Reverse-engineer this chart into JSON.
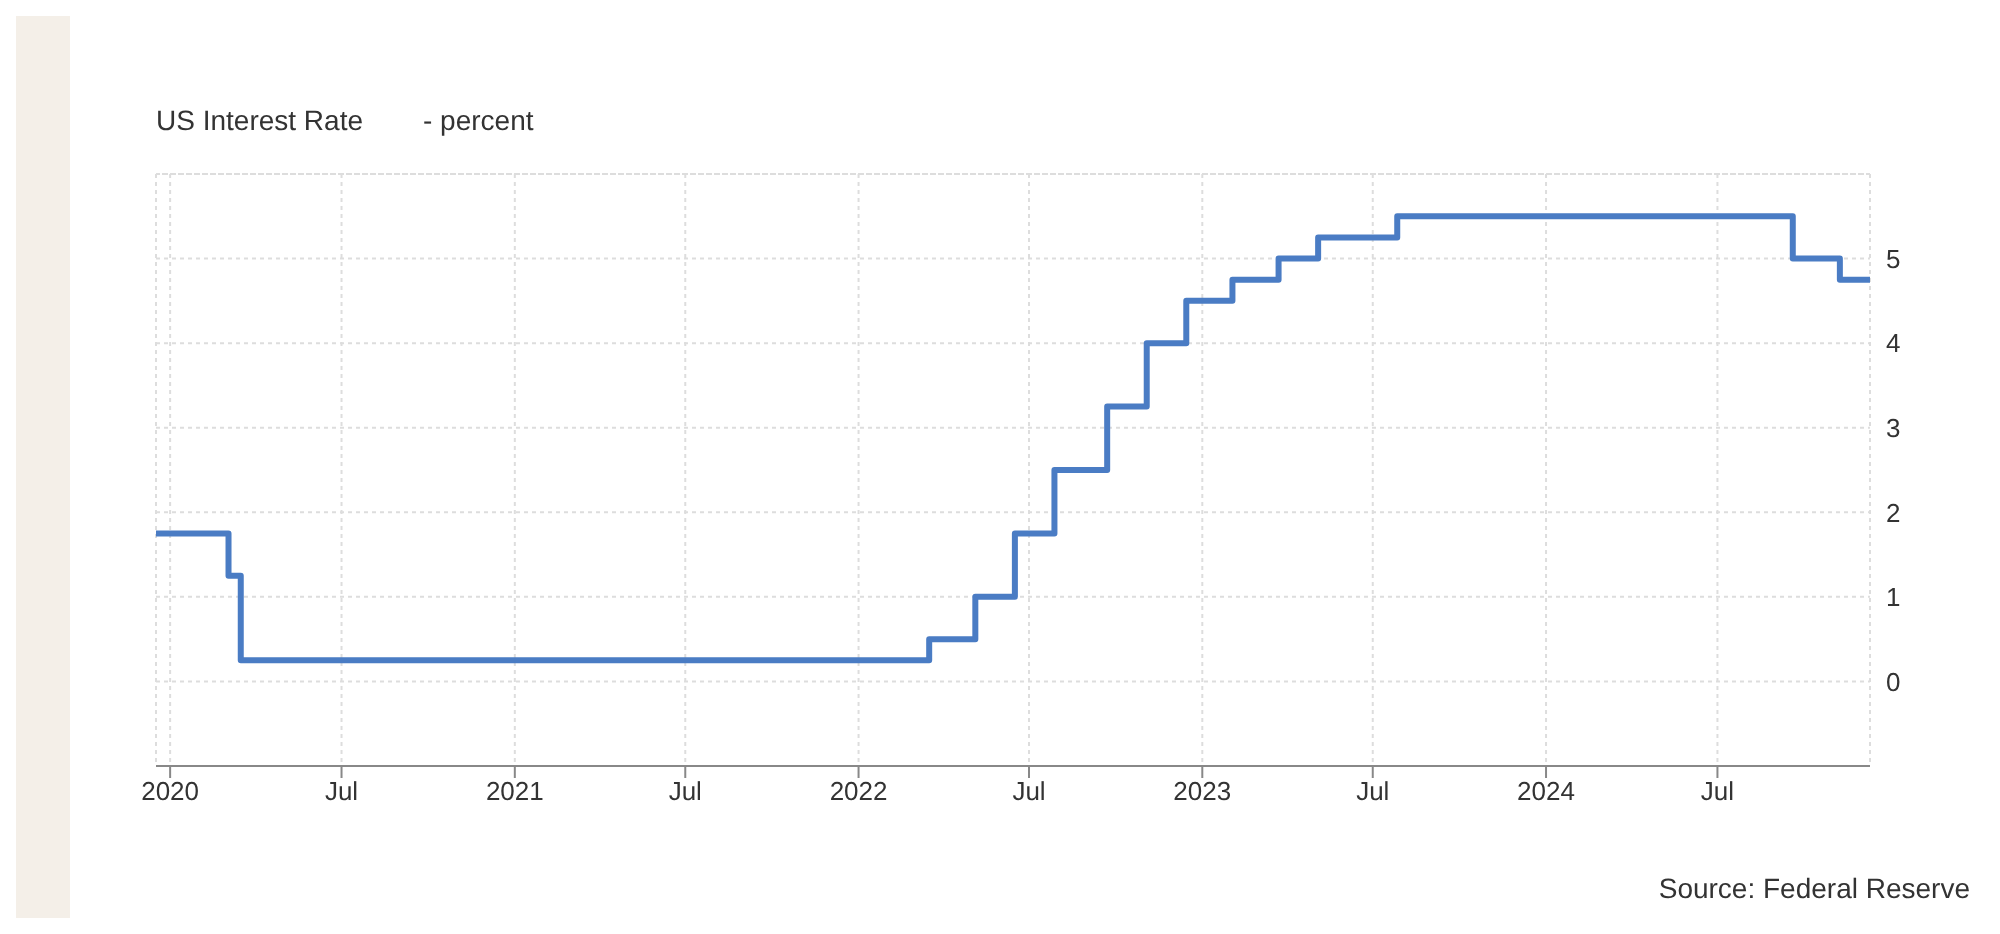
{
  "chart_data": {
    "type": "step",
    "title": "US Interest Rate",
    "subtitle": "- percent",
    "x": [
      "2019-12-17",
      "2020-03-03",
      "2020-03-16",
      "2022-03-17",
      "2022-05-05",
      "2022-06-16",
      "2022-07-28",
      "2022-09-22",
      "2022-11-03",
      "2022-12-15",
      "2023-02-02",
      "2023-03-23",
      "2023-05-04",
      "2023-07-27",
      "2024-09-19",
      "2024-11-08",
      "2024-12-10"
    ],
    "series": [
      {
        "color": "#4a7cc4",
        "values": [
          1.75,
          1.25,
          0.25,
          0.5,
          1,
          1.75,
          2.5,
          3.25,
          4,
          4.5,
          4.75,
          5,
          5.25,
          5.5,
          5,
          4.75,
          4.75
        ]
      }
    ],
    "xlim": [
      "2019-12-17",
      "2024-12-10"
    ],
    "xticks": [
      {
        "value": "2020-01-01",
        "label": "2020"
      },
      {
        "value": "2020-07-01",
        "label": "Jul"
      },
      {
        "value": "2021-01-01",
        "label": "2021"
      },
      {
        "value": "2021-07-01",
        "label": "Jul"
      },
      {
        "value": "2022-01-01",
        "label": "2022"
      },
      {
        "value": "2022-07-01",
        "label": "Jul"
      },
      {
        "value": "2023-01-01",
        "label": "2023"
      },
      {
        "value": "2023-07-01",
        "label": "Jul"
      },
      {
        "value": "2024-01-01",
        "label": "2024"
      },
      {
        "value": "2024-07-01",
        "label": "Jul"
      }
    ],
    "ylim": [
      -1,
      6
    ],
    "yticks": [
      0,
      1,
      2,
      3,
      4,
      5
    ],
    "grid": true,
    "annotations": [
      "Source: Federal Reserve"
    ]
  }
}
